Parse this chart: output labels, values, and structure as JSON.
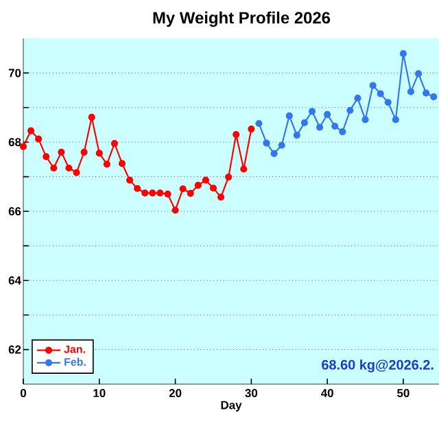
{
  "chart_data": {
    "type": "line",
    "title": "My Weight Profile 2026",
    "xlabel": "Day",
    "annotations": [
      "68.60 kg@2026.2."
    ],
    "xlim": [
      0,
      54.7
    ],
    "xticks": [
      {
        "value": 0,
        "label": "0"
      },
      {
        "value": 10,
        "label": "10"
      },
      {
        "value": 20,
        "label": "20"
      },
      {
        "value": 30,
        "label": "30"
      },
      {
        "value": 40,
        "label": "40"
      },
      {
        "value": 50,
        "label": "50"
      }
    ],
    "ylim": [
      61,
      71
    ],
    "yticks": [
      62,
      {
        "value": 63,
        "label": null
      },
      64,
      {
        "value": 65,
        "label": null
      },
      66,
      {
        "value": 67,
        "label": null
      },
      68,
      {
        "value": 69,
        "label": null
      },
      70
    ],
    "grid": "y",
    "legend": "bottom left",
    "marker": "circle",
    "series": [
      {
        "name": "Jan.",
        "color": "#ff0000",
        "x": [
          0,
          1,
          2,
          3,
          4,
          5,
          6,
          7,
          8,
          9,
          10,
          11,
          12,
          13,
          14,
          15,
          16,
          17,
          18,
          19,
          20,
          21,
          22,
          23,
          24,
          25,
          26,
          27,
          28,
          29,
          30
        ],
        "values": [
          67.87,
          68.33,
          68.09,
          67.58,
          67.25,
          67.71,
          67.25,
          67.12,
          67.71,
          68.72,
          67.68,
          67.36,
          67.96,
          67.38,
          66.9,
          66.66,
          66.53,
          66.53,
          66.53,
          66.5,
          66.03,
          66.65,
          66.52,
          66.75,
          66.9,
          66.67,
          66.41,
          66.99,
          68.22,
          67.22,
          68.38
        ]
      },
      {
        "name": "Feb.",
        "color": "#3377ee",
        "x": [
          31,
          32,
          33,
          34,
          35,
          36,
          37,
          38,
          39,
          40,
          41,
          42,
          43,
          44,
          45,
          46,
          47,
          48,
          49,
          50,
          51,
          52,
          53,
          54
        ],
        "values": [
          68.54,
          67.97,
          67.67,
          67.91,
          68.76,
          68.2,
          68.56,
          68.89,
          68.43,
          68.8,
          68.46,
          68.3,
          68.92,
          69.27,
          68.65,
          69.64,
          69.4,
          69.15,
          68.65,
          70.56,
          69.46,
          69.98,
          69.42,
          69.31
        ]
      }
    ]
  }
}
